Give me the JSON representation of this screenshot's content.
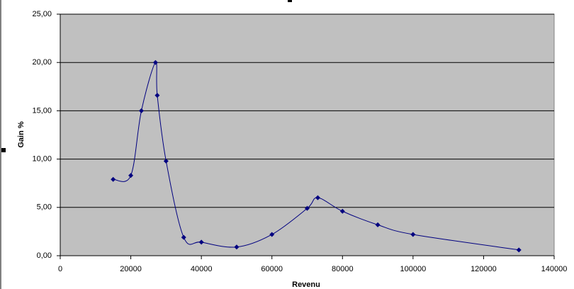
{
  "chart_data": {
    "type": "scatter",
    "smooth": true,
    "x_label": "Revenu",
    "y_label": "Gain %",
    "series": [
      {
        "color": "#000080",
        "x": [
          15000,
          20000,
          23000,
          27000,
          27500,
          30000,
          35000,
          40000,
          50000,
          60000,
          70000,
          73000,
          80000,
          90000,
          100000,
          130000
        ],
        "values": [
          7.9,
          8.3,
          15.0,
          20.0,
          16.6,
          9.8,
          1.9,
          1.4,
          0.9,
          2.2,
          4.9,
          6.0,
          4.6,
          3.2,
          2.2,
          0.6
        ]
      }
    ],
    "xlim": [
      0,
      140000
    ],
    "xticks": [
      0,
      20000,
      40000,
      60000,
      80000,
      100000,
      120000,
      140000
    ],
    "ylim": [
      0,
      25
    ],
    "yticks": [
      {
        "value": 0,
        "label": "0,00"
      },
      {
        "value": 5,
        "label": "5,00"
      },
      {
        "value": 10,
        "label": "10,00"
      },
      {
        "value": 15,
        "label": "15,00"
      },
      {
        "value": 20,
        "label": "20,00"
      },
      {
        "value": 25,
        "label": "25,00"
      }
    ],
    "grid": true,
    "plot_background": "#c0c0c0"
  }
}
